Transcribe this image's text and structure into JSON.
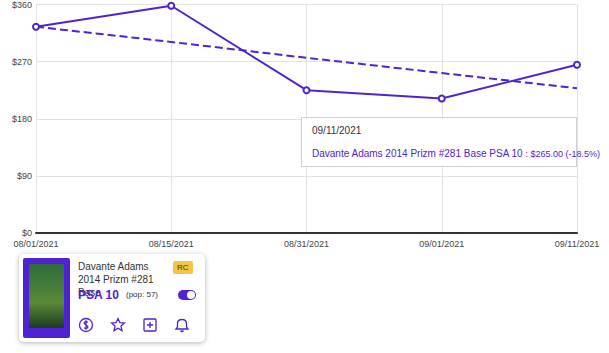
{
  "chart_data": {
    "type": "line",
    "categories": [
      "08/01/2021",
      "08/15/2021",
      "08/31/2021",
      "09/01/2021",
      "09/11/2021"
    ],
    "series": [
      {
        "name": "Davante Adams 2014 Prizm #281 Base PSA 10",
        "color": "#4f23d3",
        "values": [
          325,
          358,
          225,
          212,
          265
        ],
        "marker": "circle",
        "line_style": "solid"
      },
      {
        "color": "#4f23d3",
        "values": [
          325,
          301,
          276,
          252,
          228
        ],
        "line_style": "dashed"
      }
    ],
    "ylim": [
      0,
      360
    ],
    "yticks": [
      {
        "value": 0,
        "label": "$0"
      },
      {
        "value": 90,
        "label": "$90"
      },
      {
        "value": 180,
        "label": "$180"
      },
      {
        "value": 270,
        "label": "$270"
      },
      {
        "value": 360,
        "label": "$360"
      }
    ],
    "grid": true,
    "tooltip": {
      "x": "09/11/2021",
      "text": ": $265.00 (-18.5%)"
    }
  },
  "card": {
    "title": "Davante Adams 2014 Prizm #281 Base",
    "badge": "RC",
    "grade": "PSA 10",
    "pop": "(pop: 57)"
  }
}
